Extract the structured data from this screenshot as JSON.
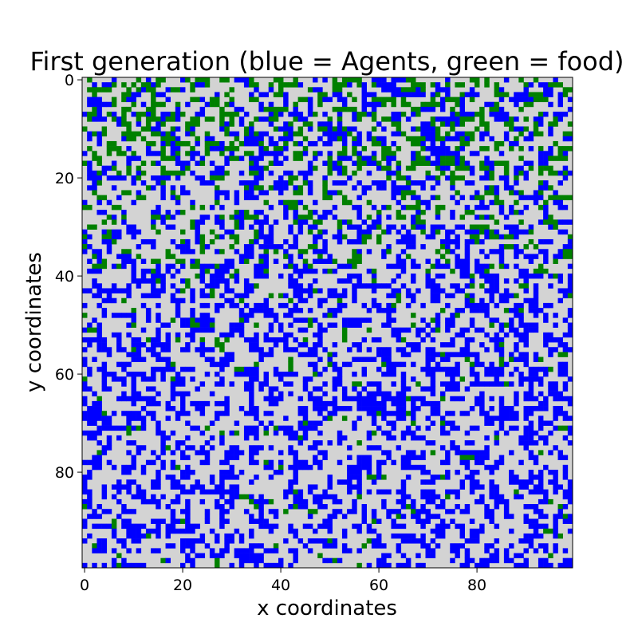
{
  "chart_data": {
    "type": "heatmap",
    "title": "First generation (blue = Agents, green = food)",
    "xlabel": "x coordinates",
    "ylabel": "y coordinates",
    "grid_size": [
      100,
      100
    ],
    "xlim": [
      0,
      99
    ],
    "ylim": [
      0,
      99
    ],
    "y_axis_direction": "top-to-bottom",
    "x_ticks": [
      "0",
      "20",
      "40",
      "60",
      "80"
    ],
    "y_ticks": [
      "0",
      "20",
      "40",
      "60",
      "80"
    ],
    "grid": false,
    "legend": "none",
    "categories": [
      {
        "name": "empty",
        "value": 0,
        "color": "#d3d3d3"
      },
      {
        "name": "Agents",
        "value": 1,
        "color": "#0000ff"
      },
      {
        "name": "food",
        "value": 2,
        "color": "#008000"
      }
    ],
    "density_profile": {
      "agent_fraction_by_row_band": [
        {
          "rows": [
            0,
            19
          ],
          "fraction": 0.2
        },
        {
          "rows": [
            20,
            39
          ],
          "fraction": 0.22
        },
        {
          "rows": [
            40,
            59
          ],
          "fraction": 0.28
        },
        {
          "rows": [
            60,
            79
          ],
          "fraction": 0.3
        },
        {
          "rows": [
            80,
            99
          ],
          "fraction": 0.28
        }
      ],
      "food_fraction_by_row_band": [
        {
          "rows": [
            0,
            19
          ],
          "fraction": 0.22
        },
        {
          "rows": [
            20,
            39
          ],
          "fraction": 0.12
        },
        {
          "rows": [
            40,
            59
          ],
          "fraction": 0.04
        },
        {
          "rows": [
            60,
            79
          ],
          "fraction": 0.02
        },
        {
          "rows": [
            80,
            99
          ],
          "fraction": 0.02
        }
      ]
    }
  }
}
